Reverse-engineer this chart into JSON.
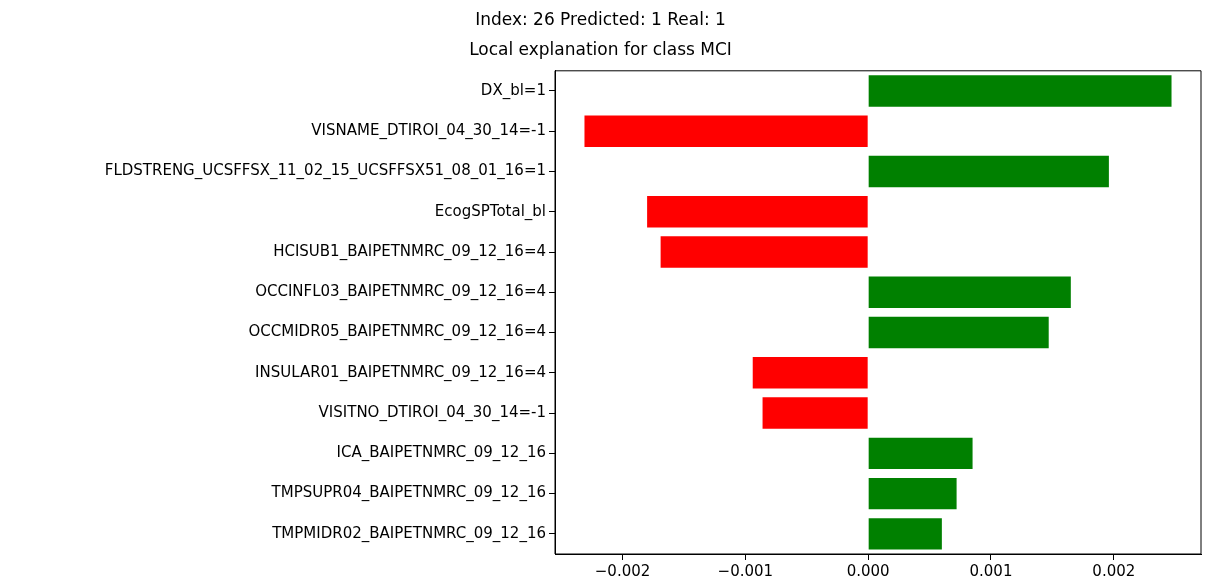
{
  "chart_data": {
    "type": "bar",
    "orientation": "horizontal",
    "title": "Index: 26 Predicted: 1 Real: 1",
    "subtitle": "Local explanation for class MCI",
    "categories": [
      "DX_bl=1",
      "VISNAME_DTIROI_04_30_14=-1",
      "FLDSTRENG_UCSFFSX_11_02_15_UCSFFSX51_08_01_16=1",
      "EcogSPTotal_bl",
      "HCISUB1_BAIPETNMRC_09_12_16=4",
      "OCCINFL03_BAIPETNMRC_09_12_16=4",
      "OCCMIDR05_BAIPETNMRC_09_12_16=4",
      "INSULAR01_BAIPETNMRC_09_12_16=4",
      "VISITNO_DTIROI_04_30_14=-1",
      "ICA_BAIPETNMRC_09_12_16",
      "TMPSUPR04_BAIPETNMRC_09_12_16",
      "TMPMIDR02_BAIPETNMRC_09_12_16"
    ],
    "values": [
      0.00247,
      -0.00231,
      0.00196,
      -0.0018,
      -0.00169,
      0.00165,
      0.00147,
      -0.00094,
      -0.00086,
      0.00085,
      0.00072,
      0.0006
    ],
    "colors": [
      "#008000",
      "#ff0000",
      "#008000",
      "#ff0000",
      "#ff0000",
      "#008000",
      "#008000",
      "#ff0000",
      "#ff0000",
      "#008000",
      "#008000",
      "#008000"
    ],
    "xlim": [
      -0.00255,
      0.00271
    ],
    "xticks": [
      {
        "value": -0.002,
        "label": "−0.002"
      },
      {
        "value": -0.001,
        "label": "−0.001"
      },
      {
        "value": 0,
        "label": "0.000"
      },
      {
        "value": 0.001,
        "label": "0.001"
      },
      {
        "value": 0.002,
        "label": "0.002"
      }
    ],
    "grid": false,
    "legend": false
  }
}
